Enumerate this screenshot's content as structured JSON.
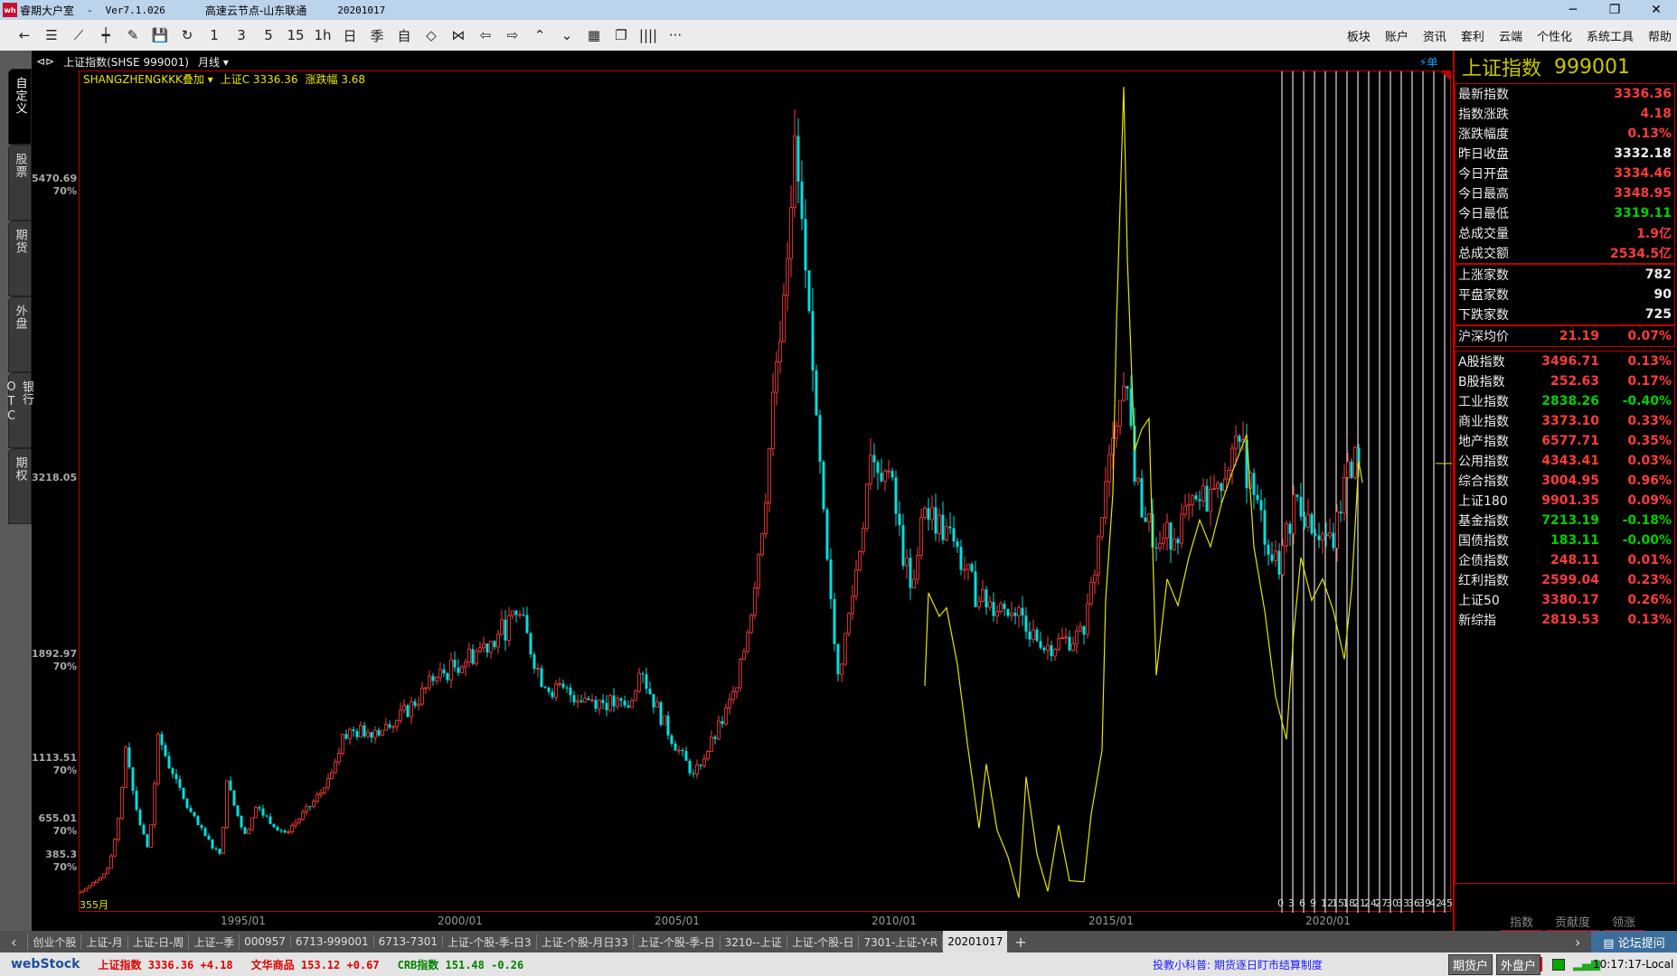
{
  "window": {
    "app": "睿期大户室",
    "sep": "-",
    "version": "Ver7.1.026",
    "server": "高速云节点-山东联通",
    "date": "20201017",
    "minimize": "─",
    "restore": "❐",
    "close": "✕"
  },
  "toolbar": {
    "items": [
      {
        "name": "back",
        "glyph": "←"
      },
      {
        "name": "list",
        "glyph": "☰"
      },
      {
        "name": "line",
        "glyph": "⟋"
      },
      {
        "name": "candle",
        "glyph": "┿"
      },
      {
        "name": "draw",
        "glyph": "✎"
      },
      {
        "name": "save",
        "glyph": "💾"
      },
      {
        "name": "refresh",
        "glyph": "↻"
      },
      {
        "name": "period-1",
        "glyph": "1"
      },
      {
        "name": "period-3",
        "glyph": "3"
      },
      {
        "name": "period-5",
        "glyph": "5"
      },
      {
        "name": "period-15",
        "glyph": "15"
      },
      {
        "name": "period-1h",
        "glyph": "1h"
      },
      {
        "name": "period-day",
        "glyph": "日"
      },
      {
        "name": "period-season",
        "glyph": "季"
      },
      {
        "name": "period-custom",
        "glyph": "自"
      },
      {
        "name": "zoom-in",
        "glyph": "◇"
      },
      {
        "name": "zoom-out",
        "glyph": "⋈"
      },
      {
        "name": "prev",
        "glyph": "⇦"
      },
      {
        "name": "next",
        "glyph": "⇨"
      },
      {
        "name": "up",
        "glyph": "⌃"
      },
      {
        "name": "down",
        "glyph": "⌄"
      },
      {
        "name": "layout",
        "glyph": "▦"
      },
      {
        "name": "windows",
        "glyph": "❐"
      },
      {
        "name": "columns",
        "glyph": "||||"
      },
      {
        "name": "more",
        "glyph": "···"
      }
    ],
    "menu": [
      "板块",
      "账户",
      "资讯",
      "套利",
      "云端",
      "个性化",
      "系统工具",
      "帮助"
    ]
  },
  "left_tabs": [
    "自定义",
    "股票",
    "期货",
    "外盘",
    "银行OTC",
    "期权"
  ],
  "chart_header": {
    "icon": "⊲⊳",
    "symbol": "上证指数(SHSE 999001)",
    "period": "月线 ▾",
    "overlay": "SHANGZHENGKKK叠加 ▾",
    "close_label": "上证C 3336.36",
    "change_label": "涨跌幅 3.68",
    "order_label": "⚡单",
    "bar_count": "355月"
  },
  "chart_data": {
    "type": "candlestick",
    "ylabels": [
      {
        "value": 5470.69,
        "pct": "70%"
      },
      {
        "value": 3218.05,
        "pct": ""
      },
      {
        "value": 1892.97,
        "pct": "70%"
      },
      {
        "value": 1113.51,
        "pct": "70%"
      },
      {
        "value": 655.01,
        "pct": "70%"
      },
      {
        "value": 385.3,
        "pct": "70%"
      }
    ],
    "xlabels": [
      "1995/01",
      "2000/01",
      "2005/01",
      "2010/01",
      "2015/01",
      "2020/01"
    ],
    "close_keypoints": [
      [
        "1991/04",
        110
      ],
      [
        "1991/12",
        290
      ],
      [
        "1992/05",
        1200
      ],
      [
        "1992/06",
        1050
      ],
      [
        "1992/11",
        450
      ],
      [
        "1993/02",
        1300
      ],
      [
        "1993/06",
        1000
      ],
      [
        "1994/07",
        400
      ],
      [
        "1994/09",
        950
      ],
      [
        "1995/02",
        550
      ],
      [
        "1995/05",
        750
      ],
      [
        "1996/01",
        560
      ],
      [
        "1996/12",
        900
      ],
      [
        "1997/05",
        1300
      ],
      [
        "1998/06",
        1350
      ],
      [
        "1999/06",
        1700
      ],
      [
        "2000/12",
        2050
      ],
      [
        "2001/06",
        2200
      ],
      [
        "2002/01",
        1650
      ],
      [
        "2003/12",
        1500
      ],
      [
        "2004/04",
        1750
      ],
      [
        "2005/06",
        1000
      ],
      [
        "2006/06",
        1650
      ],
      [
        "2006/12",
        2650
      ],
      [
        "2007/05",
        4100
      ],
      [
        "2007/10",
        5800
      ],
      [
        "2008/04",
        3700
      ],
      [
        "2008/10",
        1750
      ],
      [
        "2009/07",
        3400
      ],
      [
        "2009/12",
        3280
      ],
      [
        "2010/06",
        2400
      ],
      [
        "2010/10",
        3000
      ],
      [
        "2011/06",
        2750
      ],
      [
        "2012/01",
        2300
      ],
      [
        "2012/12",
        2250
      ],
      [
        "2013/06",
        1950
      ],
      [
        "2014/06",
        2050
      ],
      [
        "2014/12",
        3200
      ],
      [
        "2015/06",
        3900
      ],
      [
        "2015/08",
        3200
      ],
      [
        "2016/02",
        2700
      ],
      [
        "2017/06",
        3150
      ],
      [
        "2018/01",
        3500
      ],
      [
        "2018/12",
        2500
      ],
      [
        "2019/04",
        3100
      ],
      [
        "2020/03",
        2700
      ],
      [
        "2020/07",
        3350
      ],
      [
        "2020/10",
        3336
      ]
    ],
    "overlay_series": {
      "name": "SHANGZHENGKKK",
      "points": [
        [
          "2010/10",
          1663
        ],
        [
          "2010/11",
          2363
        ],
        [
          "2011/02",
          2186
        ],
        [
          "2011/04",
          2250
        ],
        [
          "2011/07",
          1824
        ],
        [
          "2011/10",
          1180
        ],
        [
          "2012/01",
          592
        ],
        [
          "2012/03",
          1075
        ],
        [
          "2012/06",
          576
        ],
        [
          "2012/09",
          375
        ],
        [
          "2012/12",
          69
        ],
        [
          "2013/02",
          978
        ],
        [
          "2013/05",
          399
        ],
        [
          "2013/08",
          117
        ],
        [
          "2013/11",
          616
        ],
        [
          "2014/02",
          197
        ],
        [
          "2014/06",
          189
        ],
        [
          "2014/08",
          697
        ],
        [
          "2014/11",
          1180
        ],
        [
          "2014/12",
          2307
        ],
        [
          "2015/02",
          3112
        ],
        [
          "2015/03",
          4400
        ],
        [
          "2015/05",
          6170
        ],
        [
          "2015/06",
          4883
        ],
        [
          "2015/08",
          3434
        ],
        [
          "2015/10",
          3595
        ],
        [
          "2015/12",
          3675
        ],
        [
          "2016/02",
          1743
        ],
        [
          "2016/05",
          2468
        ],
        [
          "2016/08",
          2267
        ],
        [
          "2016/11",
          2629
        ],
        [
          "2017/02",
          2911
        ],
        [
          "2017/05",
          2709
        ],
        [
          "2017/08",
          3031
        ],
        [
          "2017/11",
          3273
        ],
        [
          "2018/03",
          3555
        ],
        [
          "2018/05",
          2709
        ],
        [
          "2018/08",
          2226
        ],
        [
          "2018/11",
          1582
        ],
        [
          "2019/02",
          1260
        ],
        [
          "2019/04",
          2065
        ],
        [
          "2019/06",
          2629
        ],
        [
          "2019/09",
          2307
        ],
        [
          "2019/12",
          2468
        ],
        [
          "2020/03",
          2226
        ],
        [
          "2020/06",
          1864
        ],
        [
          "2020/08",
          2387
        ],
        [
          "2020/10",
          3353
        ],
        [
          "2020/11",
          3192
        ]
      ]
    },
    "cycle_labels": [
      "0",
      "3",
      "6",
      "9",
      "12",
      "15",
      "18",
      "21",
      "24",
      "27",
      "30",
      "33",
      "36",
      "39",
      "42",
      "45"
    ],
    "colors": {
      "up": "#ff3b3b",
      "down": "#00e0e0",
      "overlay": "#e6e600"
    }
  },
  "right_panel": {
    "title": "上证指数",
    "code": "999001",
    "quote": [
      {
        "label": "最新指数",
        "value": "3336.36",
        "color": "#ff3b3b"
      },
      {
        "label": "指数涨跌",
        "value": "4.18",
        "color": "#ff3b3b"
      },
      {
        "label": "涨跌幅度",
        "value": "0.13%",
        "color": "#ff3b3b"
      },
      {
        "label": "昨日收盘",
        "value": "3332.18",
        "color": "#eeeeee"
      },
      {
        "label": "今日开盘",
        "value": "3334.46",
        "color": "#ff3b3b"
      },
      {
        "label": "今日最高",
        "value": "3348.95",
        "color": "#ff3b3b"
      },
      {
        "label": "今日最低",
        "value": "3319.11",
        "color": "#00d000"
      },
      {
        "label": "总成交量",
        "value": "1.9亿",
        "color": "#ff3b3b"
      },
      {
        "label": "总成交额",
        "value": "2534.5亿",
        "color": "#ff3b3b"
      }
    ],
    "breadth": [
      {
        "label": "上涨家数",
        "value": "782"
      },
      {
        "label": "平盘家数",
        "value": "90"
      },
      {
        "label": "下跌家数",
        "value": "725"
      }
    ],
    "avg": {
      "label": "沪深均价",
      "price": "21.19",
      "pct": "0.07%"
    },
    "indices": [
      {
        "label": "A股指数",
        "value": "3496.71",
        "pct": "0.13%",
        "color": "#ff3b3b"
      },
      {
        "label": "B股指数",
        "value": "252.63",
        "pct": "0.17%",
        "color": "#ff3b3b"
      },
      {
        "label": "工业指数",
        "value": "2838.26",
        "pct": "-0.40%",
        "color": "#00d000"
      },
      {
        "label": "商业指数",
        "value": "3373.10",
        "pct": "0.33%",
        "color": "#ff3b3b"
      },
      {
        "label": "地产指数",
        "value": "6577.71",
        "pct": "0.35%",
        "color": "#ff3b3b"
      },
      {
        "label": "公用指数",
        "value": "4343.41",
        "pct": "0.03%",
        "color": "#ff3b3b"
      },
      {
        "label": "综合指数",
        "value": "3004.95",
        "pct": "0.96%",
        "color": "#ff3b3b"
      },
      {
        "label": "上证180",
        "value": "9901.35",
        "pct": "0.09%",
        "color": "#ff3b3b"
      },
      {
        "label": "基金指数",
        "value": "7213.19",
        "pct": "-0.18%",
        "color": "#00d000"
      },
      {
        "label": "国债指数",
        "value": "183.11",
        "pct": "-0.00%",
        "color": "#00d000"
      },
      {
        "label": "企债指数",
        "value": "248.11",
        "pct": "0.01%",
        "color": "#ff3b3b"
      },
      {
        "label": "红利指数",
        "value": "2599.04",
        "pct": "0.23%",
        "color": "#ff3b3b"
      },
      {
        "label": "上证50",
        "value": "3380.17",
        "pct": "0.26%",
        "color": "#ff3b3b"
      },
      {
        "label": "新综指",
        "value": "2819.53",
        "pct": "0.13%",
        "color": "#ff3b3b"
      }
    ],
    "tabs": [
      "指数",
      "贡献度",
      "领涨"
    ]
  },
  "tabs": {
    "left_arrow": "‹",
    "items": [
      "创业个股",
      "上证-月",
      "上证-日-周",
      "上证--季",
      "000957",
      "6713-999001",
      "6713-7301",
      "上证-个股-季-日3",
      "上证-个股-月日33",
      "上证-个股-季-日",
      "3210--上证",
      "上证-个股-日",
      "7301-上证-Y-R",
      "20201017"
    ],
    "active": 13,
    "add": "+",
    "right_arrow": "›",
    "forum": "▤ 论坛提问"
  },
  "status": {
    "logo": "webStock",
    "tickers": [
      {
        "name": "上证指数",
        "value": "3336.36",
        "change": "+4.18",
        "color": "#e00000"
      },
      {
        "name": "文华商品",
        "value": "153.12",
        "change": "+0.67",
        "color": "#e00000"
      },
      {
        "name": "CRB指数",
        "value": "151.48",
        "change": "-0.26",
        "color": "#008000"
      }
    ],
    "news": "投教小科普: 期货逐日盯市结算制度",
    "buttons": [
      "期货户",
      "外盘户"
    ],
    "time": "10:17:17-Local"
  }
}
